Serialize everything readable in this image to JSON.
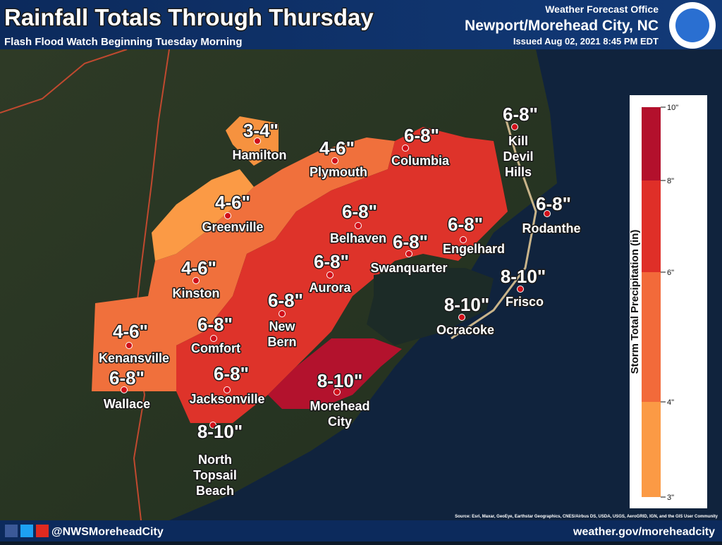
{
  "header": {
    "title": "Rainfall Totals Through Thursday",
    "subtitle": "Flash Flood Watch Beginning Tuesday Morning",
    "office": "Weather Forecast Office",
    "location": "Newport/Morehead City, NC",
    "issued": "Issued Aug 02, 2021 8:45 PM EDT"
  },
  "cities": [
    {
      "amount": "3-4\"",
      "name": [
        "Hamilton"
      ]
    },
    {
      "amount": "4-6\"",
      "name": [
        "Plymouth"
      ]
    },
    {
      "amount": "6-8\"",
      "name": [
        "Columbia"
      ]
    },
    {
      "amount": "6-8\"",
      "name": [
        "Kill",
        "Devil",
        "Hills"
      ]
    },
    {
      "amount": "4-6\"",
      "name": [
        "Greenville"
      ]
    },
    {
      "amount": "6-8\"",
      "name": [
        "Belhaven"
      ]
    },
    {
      "amount": "6-8\"",
      "name": [
        "Engelhard"
      ]
    },
    {
      "amount": "6-8\"",
      "name": [
        "Rodanthe"
      ]
    },
    {
      "amount": "6-8\"",
      "name": [
        "Swanquarter"
      ]
    },
    {
      "amount": "6-8\"",
      "name": [
        "Aurora"
      ]
    },
    {
      "amount": "4-6\"",
      "name": [
        "Kinston"
      ]
    },
    {
      "amount": "6-8\"",
      "name": [
        "New",
        "Bern"
      ]
    },
    {
      "amount": "8-10\"",
      "name": [
        "Frisco"
      ]
    },
    {
      "amount": "8-10\"",
      "name": [
        "Ocracoke"
      ]
    },
    {
      "amount": "4-6\"",
      "name": [
        "Kenansville"
      ]
    },
    {
      "amount": "6-8\"",
      "name": [
        "Comfort"
      ]
    },
    {
      "amount": "6-8\"",
      "name": [
        "Wallace"
      ]
    },
    {
      "amount": "6-8\"",
      "name": [
        "Jacksonville"
      ]
    },
    {
      "amount": "8-10\"",
      "name": [
        "Morehead",
        "City"
      ]
    },
    {
      "amount": "8-10\"",
      "name": [
        "North",
        "Topsail",
        "Beach"
      ]
    }
  ],
  "legend": {
    "title": "Storm Total Precipitation (in)",
    "ticks": [
      {
        "value": 3,
        "label": "3\""
      },
      {
        "value": 4,
        "label": "4\""
      },
      {
        "value": 6,
        "label": "6\""
      },
      {
        "value": 8,
        "label": "8\""
      },
      {
        "value": 10,
        "label": "10\""
      }
    ],
    "colors": [
      "#fb9a45",
      "#f26a3a",
      "#df2f28",
      "#b3102c"
    ]
  },
  "source": "Source: Esri, Maxar, GeoEye, Earthstar Geographics, CNES/Airbus DS, USDA, USGS, AeroGRID, IGN, and the GIS User Community",
  "footer": {
    "social": "@NWSMoreheadCity",
    "url": "weather.gov/moreheadcity"
  }
}
